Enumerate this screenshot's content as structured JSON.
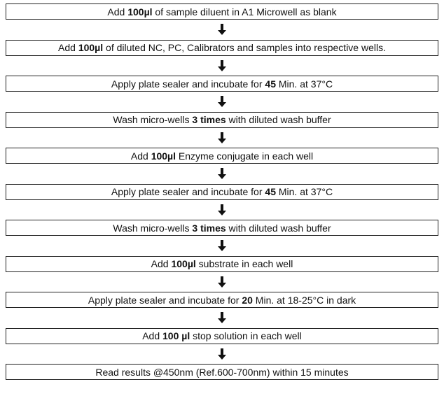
{
  "steps": [
    {
      "parts": [
        "Add ",
        "100µl",
        " of sample diluent in A1 Microwell as blank"
      ]
    },
    {
      "parts": [
        "Add ",
        "100µl",
        " of diluted NC, PC, Calibrators and samples into respective wells."
      ]
    },
    {
      "parts": [
        "Apply plate sealer and incubate for ",
        "45",
        " Min. at 37°C"
      ]
    },
    {
      "parts": [
        "Wash micro-wells ",
        "3 times",
        " with diluted wash buffer"
      ]
    },
    {
      "parts": [
        "Add ",
        "100µl",
        " Enzyme conjugate in each well"
      ]
    },
    {
      "parts": [
        "Apply plate sealer and incubate for ",
        "45",
        " Min. at 37°C"
      ]
    },
    {
      "parts": [
        "Wash micro-wells ",
        "3 times",
        " with diluted wash buffer"
      ]
    },
    {
      "parts": [
        "Add ",
        "100µl",
        " substrate in each well"
      ]
    },
    {
      "parts": [
        "Apply plate sealer and incubate for ",
        "20",
        " Min. at 18-25°C in dark"
      ]
    },
    {
      "parts": [
        "Add ",
        "100 µl",
        " stop solution in each well"
      ]
    },
    {
      "parts": [
        "Read results @450nm (Ref.600-700nm) within 15 minutes"
      ]
    }
  ]
}
